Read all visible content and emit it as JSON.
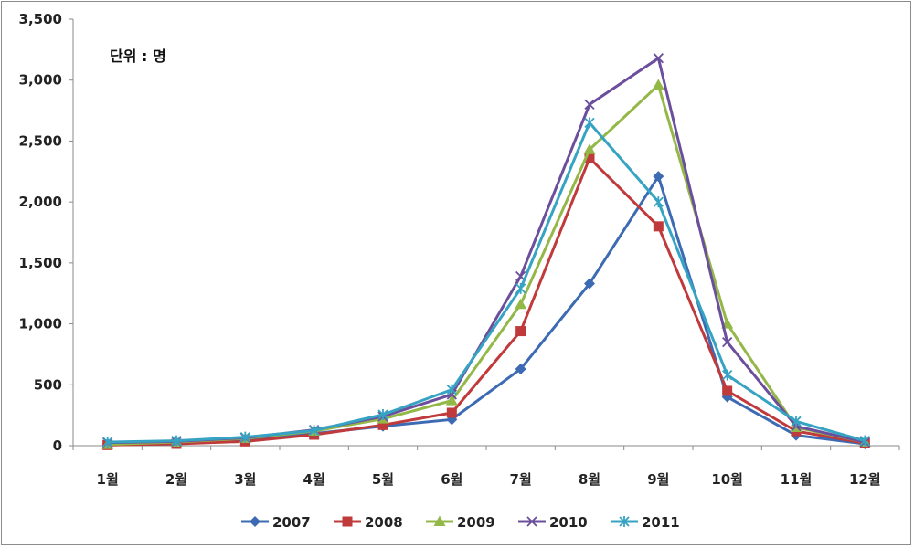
{
  "chart_data": {
    "type": "line",
    "unit_note": "단위 : 명",
    "categories": [
      "1월",
      "2월",
      "3월",
      "4월",
      "5월",
      "6월",
      "7월",
      "8월",
      "9월",
      "10월",
      "11월",
      "12월"
    ],
    "ylim": [
      0,
      3500
    ],
    "yticks": [
      0,
      500,
      1000,
      1500,
      2000,
      2500,
      3000,
      3500
    ],
    "ytick_labels": [
      "0",
      "500",
      "1,000",
      "1,500",
      "2,000",
      "2,500",
      "3,000",
      "3,500"
    ],
    "grid": false,
    "legend_position": "bottom",
    "series": [
      {
        "name": "2007",
        "color": "#3d6bb3",
        "marker": "diamond",
        "values": [
          15,
          25,
          45,
          100,
          160,
          215,
          630,
          1330,
          2210,
          400,
          85,
          15
        ]
      },
      {
        "name": "2008",
        "color": "#c0393b",
        "marker": "square",
        "values": [
          5,
          15,
          35,
          90,
          170,
          270,
          940,
          2360,
          1800,
          450,
          120,
          20
        ]
      },
      {
        "name": "2009",
        "color": "#93b847",
        "marker": "triangle",
        "values": [
          10,
          30,
          60,
          120,
          220,
          370,
          1160,
          2430,
          2960,
          1000,
          150,
          30
        ]
      },
      {
        "name": "2010",
        "color": "#6c4f9c",
        "marker": "x",
        "values": [
          25,
          35,
          65,
          130,
          240,
          420,
          1390,
          2800,
          3180,
          850,
          160,
          30
        ]
      },
      {
        "name": "2011",
        "color": "#36a3c3",
        "marker": "star",
        "values": [
          30,
          40,
          70,
          125,
          255,
          460,
          1290,
          2650,
          2000,
          580,
          200,
          40
        ]
      }
    ]
  }
}
